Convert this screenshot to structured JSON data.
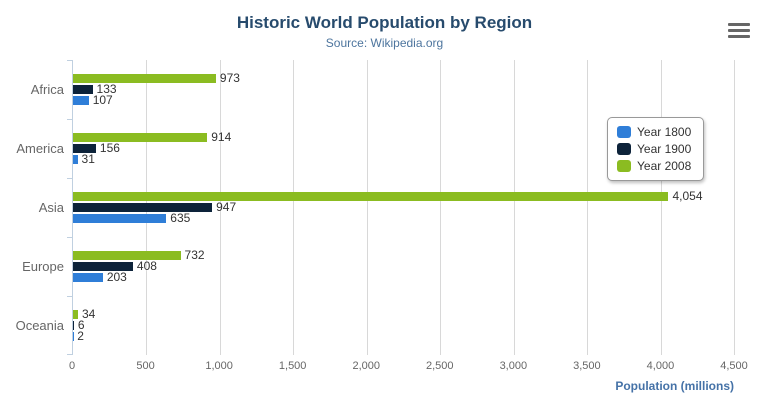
{
  "chart_data": {
    "type": "bar",
    "title": "Historic World Population by Region",
    "subtitle": "Source: Wikipedia.org",
    "xlabel": "Population (millions)",
    "categories": [
      "Africa",
      "America",
      "Asia",
      "Europe",
      "Oceania"
    ],
    "series": [
      {
        "name": "Year 1800",
        "color": "#2f7ed8",
        "values": [
          107,
          31,
          635,
          203,
          2
        ],
        "labels": [
          "107",
          "31",
          "635",
          "203",
          "2"
        ]
      },
      {
        "name": "Year 1900",
        "color": "#0d233a",
        "values": [
          133,
          156,
          947,
          408,
          6
        ],
        "labels": [
          "133",
          "156",
          "947",
          "408",
          "6"
        ]
      },
      {
        "name": "Year 2008",
        "color": "#8bbc21",
        "values": [
          973,
          914,
          4054,
          732,
          34
        ],
        "labels": [
          "973",
          "914",
          "4,054",
          "732",
          "34"
        ]
      }
    ],
    "bar_order_top_to_bottom": [
      "Year 2008",
      "Year 1900",
      "Year 1800"
    ],
    "xlim": [
      0,
      4500
    ],
    "xticks": {
      "values": [
        0,
        500,
        1000,
        1500,
        2000,
        2500,
        3000,
        3500,
        4000,
        4500
      ],
      "labels": [
        "0",
        "500",
        "1,000",
        "1,500",
        "2,000",
        "2,500",
        "3,000",
        "3,500",
        "4,000",
        "4,500"
      ]
    },
    "grid": "vertical",
    "legend_position": "right-top"
  },
  "icons": {
    "context_menu": "hamburger-menu"
  },
  "colors": {
    "title": "#274b6d",
    "subtitle": "#4d759e",
    "axis_line": "#c0d0e0",
    "gridline": "#d8d8d8",
    "tick_label": "#666666",
    "value_label": "#333333",
    "xaxis_title": "#4572a7",
    "legend_border": "#999999"
  }
}
